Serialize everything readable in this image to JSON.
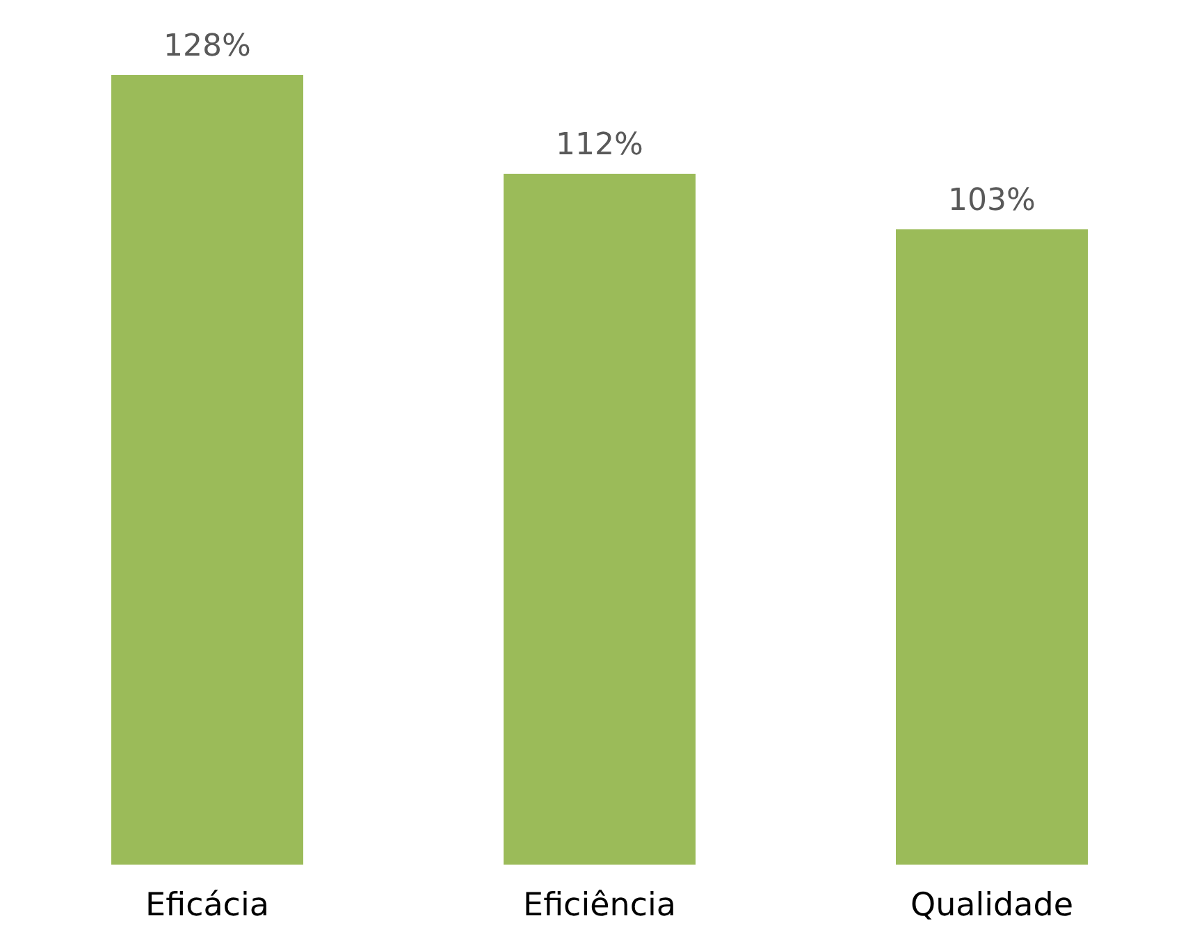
{
  "chart_data": {
    "type": "bar",
    "categories": [
      "Eficácia",
      "Eficiência",
      "Qualidade"
    ],
    "values": [
      128,
      112,
      103
    ],
    "value_labels": [
      "128%",
      "112%",
      "103%"
    ],
    "color": "#9bbb59"
  }
}
